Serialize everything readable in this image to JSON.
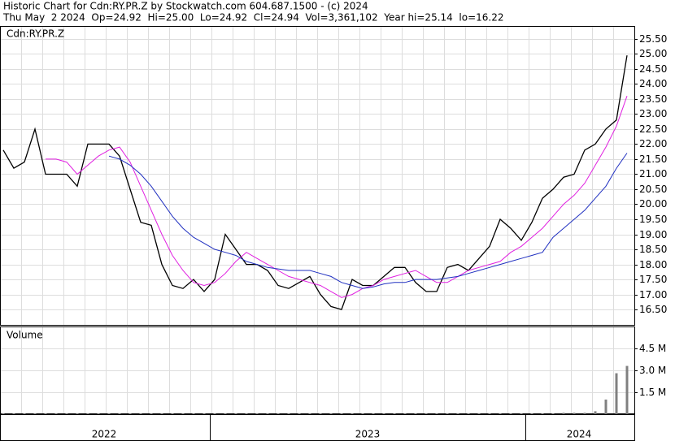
{
  "header": {
    "line1": "Historic Chart for Cdn:RY.PR.Z by Stockwatch.com 604.687.1500 - (c) 2024",
    "line2": "Thu May  2 2024  Op=24.92  Hi=25.00  Lo=24.92  Cl=24.94  Vol=3,361,102  Year hi=25.14  lo=16.22"
  },
  "year_labels": [
    "2022",
    "2023",
    "2024"
  ],
  "chart_data": [
    {
      "type": "line",
      "title": "Cdn:RY.PR.Z",
      "grid": true,
      "ylim": [
        15.99,
        25.9
      ],
      "yticks": [
        {
          "value": 16.5,
          "label": "16.50"
        },
        {
          "value": 17,
          "label": "17.00"
        },
        {
          "value": 17.5,
          "label": "17.50"
        },
        {
          "value": 18,
          "label": "18.00"
        },
        {
          "value": 18.5,
          "label": "18.50"
        },
        {
          "value": 19,
          "label": "19.00"
        },
        {
          "value": 19.5,
          "label": "19.50"
        },
        {
          "value": 20,
          "label": "20.00"
        },
        {
          "value": 20.5,
          "label": "20.50"
        },
        {
          "value": 21,
          "label": "21.00"
        },
        {
          "value": 21.5,
          "label": "21.50"
        },
        {
          "value": 22,
          "label": "22.00"
        },
        {
          "value": 22.5,
          "label": "22.50"
        },
        {
          "value": 23,
          "label": "23.00"
        },
        {
          "value": 23.5,
          "label": "23.50"
        },
        {
          "value": 24,
          "label": "24.00"
        },
        {
          "value": 24.5,
          "label": "24.50"
        },
        {
          "value": 25,
          "label": "25.00"
        },
        {
          "value": 25.5,
          "label": "25.50"
        }
      ],
      "series": [
        {
          "color": "#000000",
          "values": [
            21.8,
            21.2,
            21.4,
            22.5,
            21.0,
            21.0,
            21.0,
            20.6,
            22.0,
            22.0,
            22.0,
            21.6,
            20.5,
            19.4,
            19.3,
            18.0,
            17.3,
            17.2,
            17.5,
            17.1,
            17.5,
            19.0,
            18.5,
            18.0,
            18.0,
            17.8,
            17.3,
            17.2,
            17.4,
            17.6,
            17.0,
            16.6,
            16.5,
            17.5,
            17.3,
            17.3,
            17.6,
            17.9,
            17.9,
            17.4,
            17.1,
            17.1,
            17.9,
            18.0,
            17.8,
            18.2,
            18.6,
            19.5,
            19.2,
            18.8,
            19.4,
            20.2,
            20.5,
            20.9,
            21.0,
            21.8,
            22.0,
            22.5,
            22.8,
            24.95
          ]
        },
        {
          "color": "#e020e0",
          "values": [
            null,
            null,
            null,
            null,
            21.5,
            21.5,
            21.4,
            21.0,
            21.3,
            21.6,
            21.8,
            21.9,
            21.4,
            20.6,
            19.8,
            19.0,
            18.3,
            17.8,
            17.4,
            17.3,
            17.4,
            17.7,
            18.1,
            18.4,
            18.2,
            18.0,
            17.8,
            17.6,
            17.5,
            17.4,
            17.3,
            17.1,
            16.9,
            17.0,
            17.2,
            17.3,
            17.5,
            17.6,
            17.7,
            17.8,
            17.6,
            17.4,
            17.4,
            17.6,
            17.8,
            17.9,
            18.0,
            18.1,
            18.4,
            18.6,
            18.9,
            19.2,
            19.6,
            20.0,
            20.3,
            20.7,
            21.3,
            21.9,
            22.6,
            23.6
          ]
        },
        {
          "color": "#2030c0",
          "values": [
            null,
            null,
            null,
            null,
            null,
            null,
            null,
            null,
            null,
            null,
            21.6,
            21.5,
            21.3,
            21.0,
            20.6,
            20.1,
            19.6,
            19.2,
            18.9,
            18.7,
            18.5,
            18.4,
            18.3,
            18.1,
            18.0,
            17.9,
            17.85,
            17.8,
            17.8,
            17.8,
            17.7,
            17.6,
            17.4,
            17.3,
            17.2,
            17.25,
            17.35,
            17.4,
            17.4,
            17.5,
            17.5,
            17.5,
            17.55,
            17.6,
            17.7,
            17.8,
            17.9,
            18.0,
            18.1,
            18.2,
            18.3,
            18.4,
            18.9,
            19.2,
            19.5,
            19.8,
            20.2,
            20.6,
            21.2,
            21.7
          ]
        }
      ]
    },
    {
      "type": "bar",
      "title": "Volume",
      "grid": true,
      "color": "#808080",
      "ylim": [
        0,
        5.94
      ],
      "yticks": [
        {
          "value": 1.5,
          "label": "1.5 M"
        },
        {
          "value": 3,
          "label": "3.0 M"
        },
        {
          "value": 4.5,
          "label": "4.5 M"
        }
      ],
      "values": [
        0.05,
        0.05,
        0.05,
        0.05,
        0.05,
        0.05,
        0.05,
        0.05,
        0.05,
        0.05,
        0.05,
        0.05,
        0.05,
        0.05,
        0.05,
        0.05,
        0.05,
        0.05,
        0.05,
        0.05,
        0.05,
        0.05,
        0.05,
        0.05,
        0.05,
        0.05,
        0.05,
        0.05,
        0.05,
        0.05,
        0.05,
        0.05,
        0.05,
        0.05,
        0.05,
        0.05,
        0.05,
        0.05,
        0.05,
        0.05,
        0.05,
        0.05,
        0.05,
        0.05,
        0.05,
        0.05,
        0.05,
        0.05,
        0.05,
        0.05,
        0.05,
        0.05,
        0.05,
        0.1,
        0.1,
        0.1,
        0.2,
        1.0,
        2.8,
        3.3
      ]
    }
  ]
}
